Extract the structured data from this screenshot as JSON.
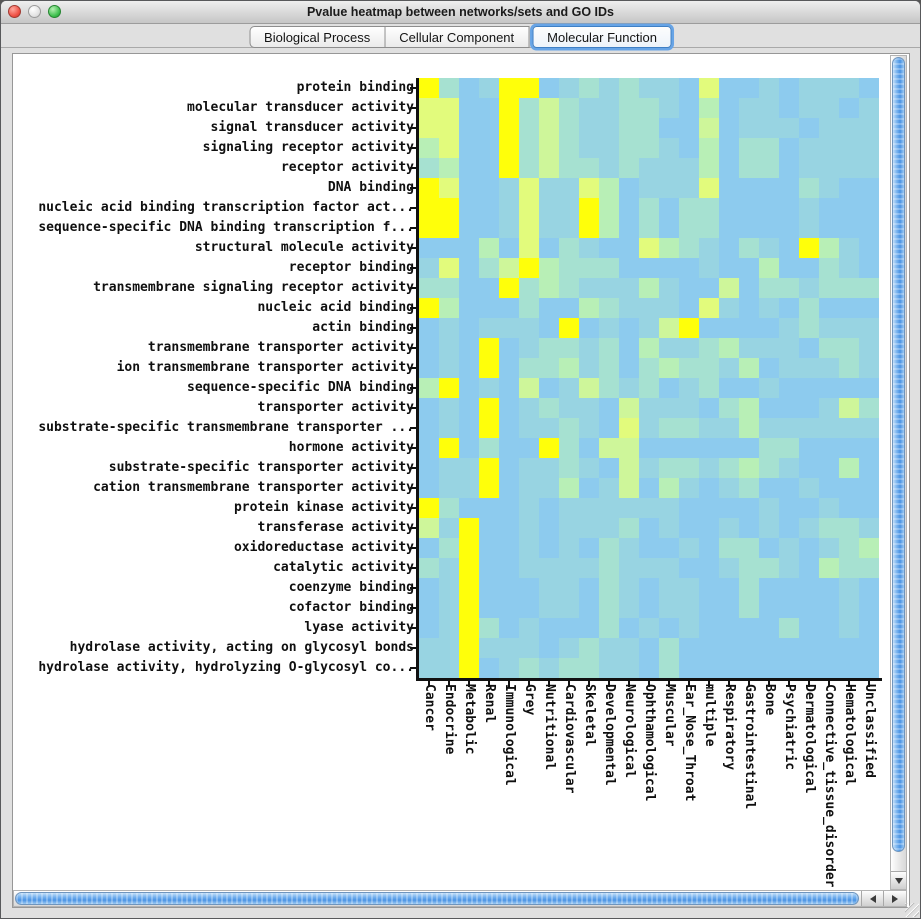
{
  "window": {
    "title": "Pvalue heatmap between networks/sets and GO IDs"
  },
  "icons": {
    "close": "red-circle",
    "minimize": "gray-circle",
    "zoom": "green-circle",
    "scroll_left": "left-triangle",
    "scroll_right": "right-triangle",
    "scroll_down": "down-triangle"
  },
  "tabs": {
    "items": [
      {
        "label": "Biological Process",
        "selected": false
      },
      {
        "label": "Cellular Component",
        "selected": false
      },
      {
        "label": "Molecular Function",
        "selected": true
      }
    ]
  },
  "chart_data": {
    "type": "heatmap",
    "title": "Pvalue heatmap between networks/sets and GO IDs",
    "x_categories": [
      "Cancer",
      "Endocrine",
      "Metabolic",
      "Renal",
      "Immunological",
      "Grey",
      "Nutritional",
      "Cardiovascular",
      "Skeletal",
      "Developmental",
      "Neurological",
      "Ophthamological",
      "Muscular",
      "Ear_Nose_Throat",
      "multiple",
      "Respiratory",
      "Gastrointestinal",
      "Bone",
      "Psychiatric",
      "Dermatological",
      "Connective_tissue_disorder",
      "Hematological",
      "Unclassified"
    ],
    "y_categories": [
      "protein binding",
      "molecular transducer activity",
      "signal transducer activity",
      "signaling receptor activity",
      "receptor activity",
      "DNA binding",
      "nucleic acid binding transcription factor act...",
      "sequence-specific DNA binding transcription f...",
      "structural molecule activity",
      "receptor binding",
      "transmembrane signaling receptor activity",
      "nucleic acid binding",
      "actin binding",
      "transmembrane transporter activity",
      "ion transmembrane transporter activity",
      "sequence-specific DNA binding",
      "transporter activity",
      "substrate-specific transmembrane transporter ...",
      "hormone activity",
      "substrate-specific transporter activity",
      "cation transmembrane transporter activity",
      "protein kinase activity",
      "transferase activity",
      "oxidoreductase activity",
      "catalytic activity",
      "coenzyme binding",
      "cofactor binding",
      "lyase activity",
      "hydrolase activity, acting on glycosyl bonds",
      "hydrolase activity, hydrolyzing O-glycosyl co..."
    ],
    "value_legend": "color level 0-6: 0 = low significance (blue) through 6 = high significance (yellow)",
    "palette": [
      "#8DCBEE",
      "#98D4E2",
      "#A6E1D1",
      "#B8EFB6",
      "#CEF69A",
      "#E2FB7C",
      "#FFFF0A"
    ],
    "cells": [
      "62016601212110500101110",
      "55006242112210301101101",
      "55006242112200401110111",
      "35006242112210302201111",
      "23006242212111302201111",
      "65001511530111500002100",
      "66001511630202200001000",
      "66001511630202200001000",
      "00030502100532102106310",
      "15024632220000100300210",
      "22006232111310040221222",
      "63000200321110510102000",
      "01011106010146000012111",
      "01060122120311231110221",
      "01060223120232213011121",
      "36010401421201200100000",
      "01060121104111023000142",
      "01060112105122113111111",
      "06020062044000000220000",
      "01160112104122123210030",
      "01160113014031012001000",
      "62000101111110000100100",
      "41600101112010010101221",
      "02600101021001022010123",
      "21600111121110012210322",
      "01600011021011002000010",
      "01600011021011002000010",
      "01620100020101000020010",
      "11611101211020000000000",
      "11601212211020000000000"
    ]
  }
}
